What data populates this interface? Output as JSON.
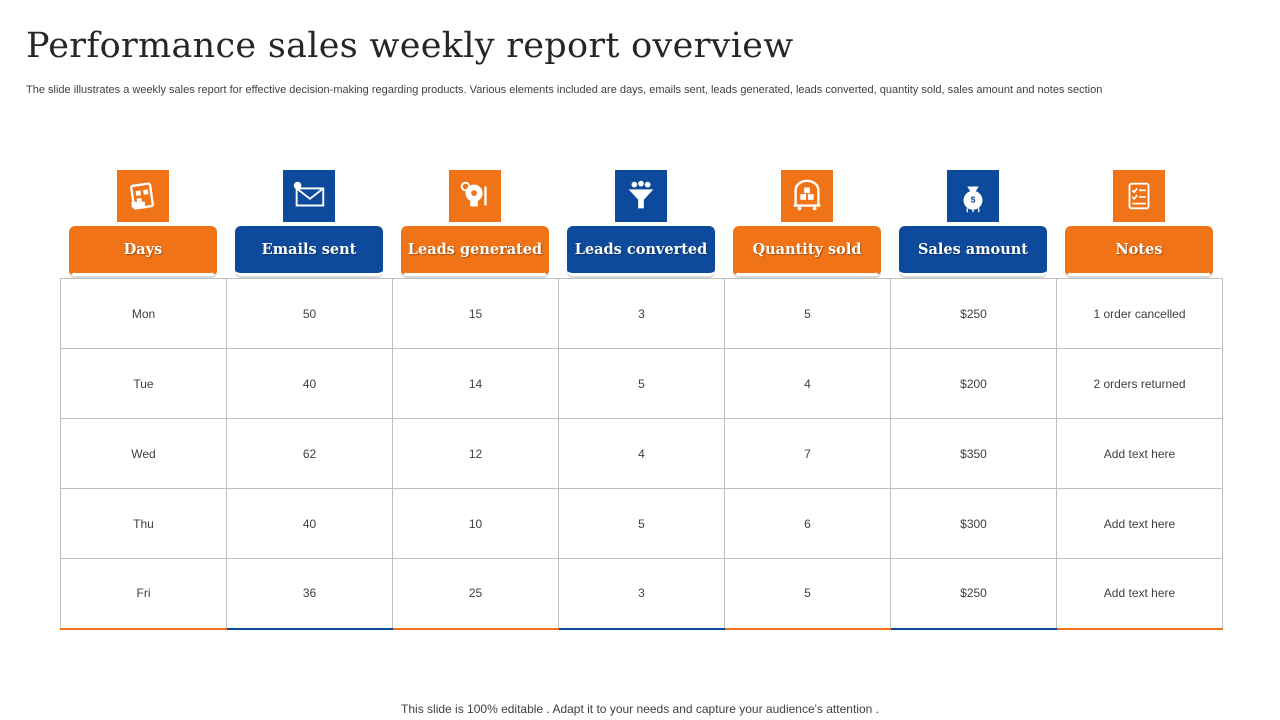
{
  "title": "Performance sales weekly report overview",
  "subtitle": "The slide illustrates a weekly sales report for effective  decision-making regarding products. Various elements included are days, emails sent, leads generated, leads converted, quantity sold, sales amount and notes section",
  "footer": "This slide is 100% editable . Adapt it to your needs and capture your audience's attention .",
  "colors": {
    "orange": "#f07417",
    "blue": "#0e4a9b"
  },
  "columns": [
    {
      "label": "Days",
      "icon": "calendar-icon",
      "color": "orange"
    },
    {
      "label": "Emails sent",
      "icon": "envelope-icon",
      "color": "blue"
    },
    {
      "label": "Leads generated",
      "icon": "lightbulb-gear-icon",
      "color": "orange"
    },
    {
      "label": "Leads converted",
      "icon": "funnel-icon",
      "color": "blue"
    },
    {
      "label": "Quantity sold",
      "icon": "boxes-cart-icon",
      "color": "orange"
    },
    {
      "label": "Sales amount",
      "icon": "money-bag-icon",
      "color": "blue"
    },
    {
      "label": "Notes",
      "icon": "notes-checklist-icon",
      "color": "orange"
    }
  ],
  "rows": [
    [
      "Mon",
      "50",
      "15",
      "3",
      "5",
      "$250",
      "1 order cancelled"
    ],
    [
      "Tue",
      "40",
      "14",
      "5",
      "4",
      "$200",
      "2 orders returned"
    ],
    [
      "Wed",
      "62",
      "12",
      "4",
      "7",
      "$350",
      "Add text here"
    ],
    [
      "Thu",
      "40",
      "10",
      "5",
      "6",
      "$300",
      "Add text here"
    ],
    [
      "Fri",
      "36",
      "25",
      "3",
      "5",
      "$250",
      "Add text here"
    ]
  ]
}
